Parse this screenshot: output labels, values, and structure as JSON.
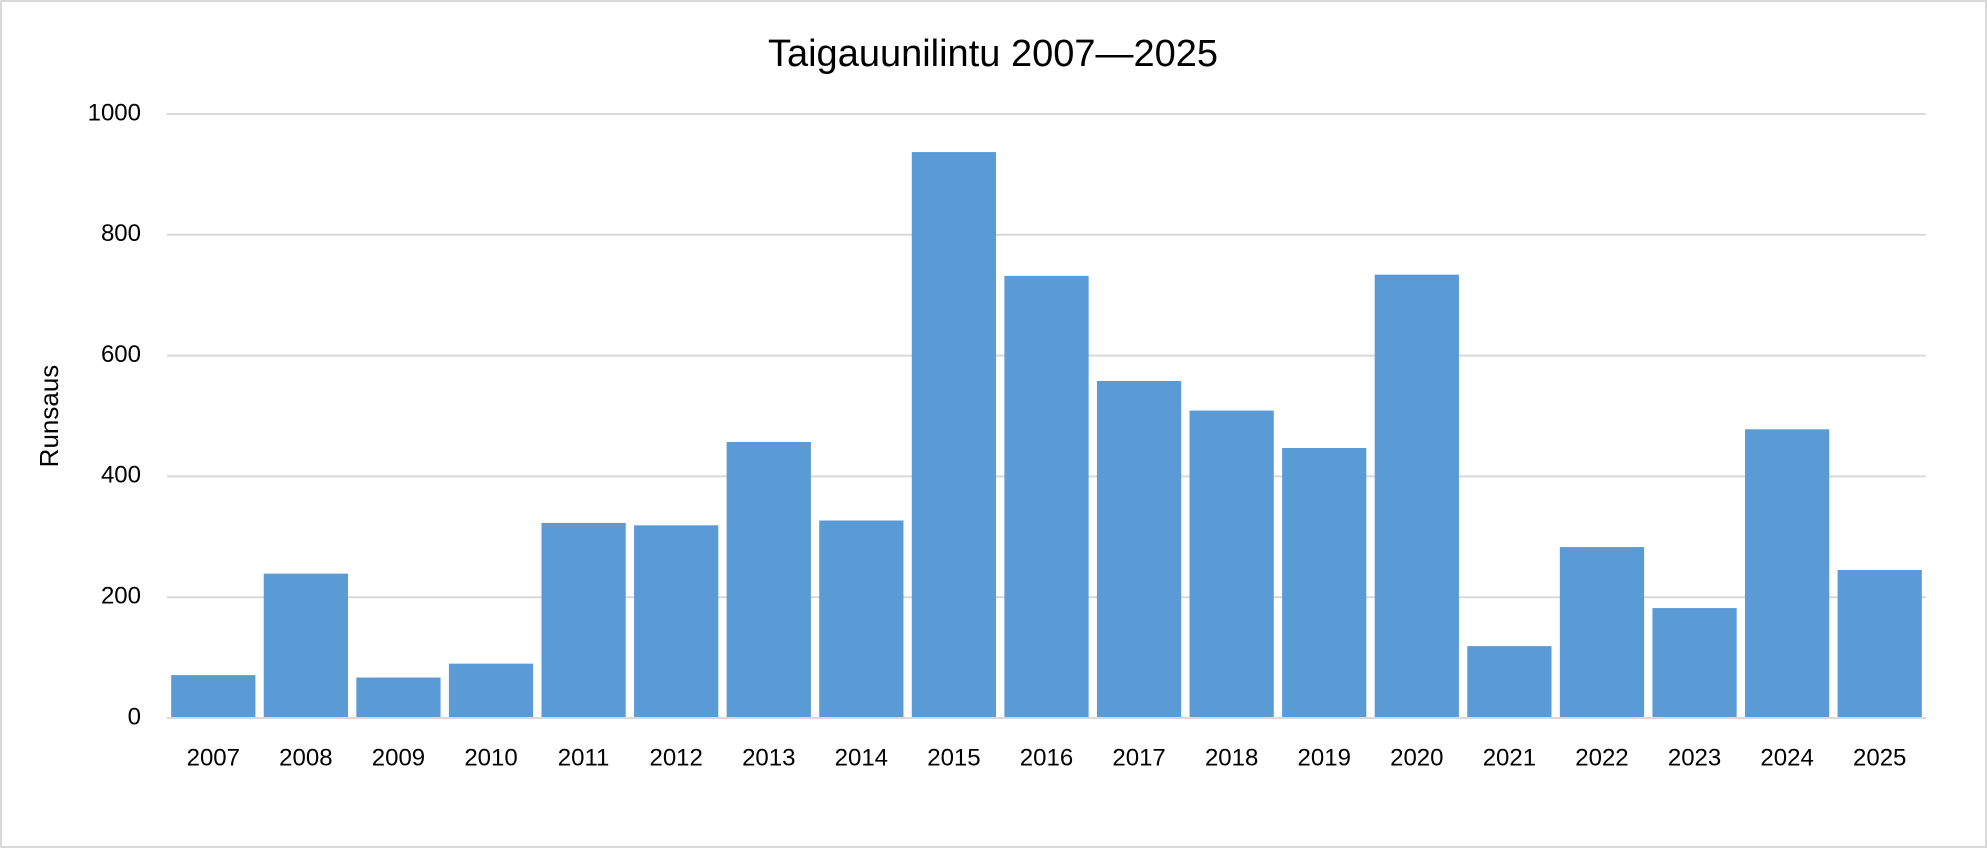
{
  "chart_data": {
    "type": "bar",
    "title": "Taigauunilintu 2007—2025",
    "y_label": "Runsaus",
    "categories": [
      "2007",
      "2008",
      "2009",
      "2010",
      "2011",
      "2012",
      "2013",
      "2014",
      "2015",
      "2016",
      "2017",
      "2018",
      "2019",
      "2020",
      "2021",
      "2022",
      "2023",
      "2024",
      "2025"
    ],
    "values": [
      71,
      239,
      67,
      90,
      323,
      319,
      457,
      327,
      937,
      732,
      558,
      509,
      447,
      734,
      119,
      283,
      182,
      478,
      245
    ],
    "color": "#5b9bd5",
    "ylim": [
      0,
      1000
    ],
    "yticks": [
      0,
      200,
      400,
      600,
      800,
      1000
    ],
    "grid": true
  }
}
